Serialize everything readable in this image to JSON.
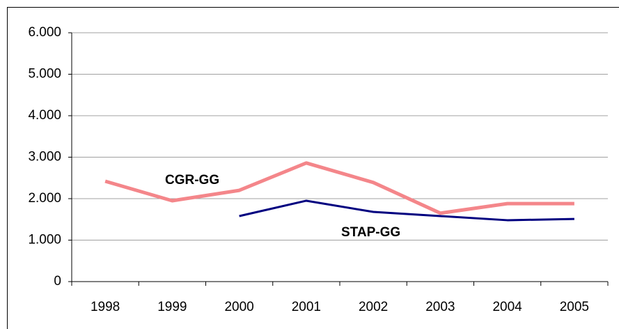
{
  "chart_data": {
    "type": "line",
    "categories": [
      "1998",
      "1999",
      "2000",
      "2001",
      "2002",
      "2003",
      "2004",
      "2005"
    ],
    "series": [
      {
        "name": "CGR-GG",
        "color": "#f4868a",
        "values": [
          2420,
          1950,
          2200,
          2860,
          2390,
          1650,
          1880,
          1880
        ]
      },
      {
        "name": "STAP-GG",
        "color": "#000080",
        "values": [
          null,
          null,
          1580,
          1950,
          1680,
          1580,
          1480,
          1510
        ]
      }
    ],
    "ylim": [
      0,
      6000
    ],
    "yticks": [
      0,
      {
        "value": 1000,
        "label": "1.000"
      },
      {
        "value": 2000,
        "label": "2.000"
      },
      {
        "value": 3000,
        "label": "3.000"
      },
      {
        "value": 4000,
        "label": "4.000"
      },
      {
        "value": 5000,
        "label": "5.000"
      },
      {
        "value": 6000,
        "label": "6.000"
      }
    ],
    "grid": true
  }
}
